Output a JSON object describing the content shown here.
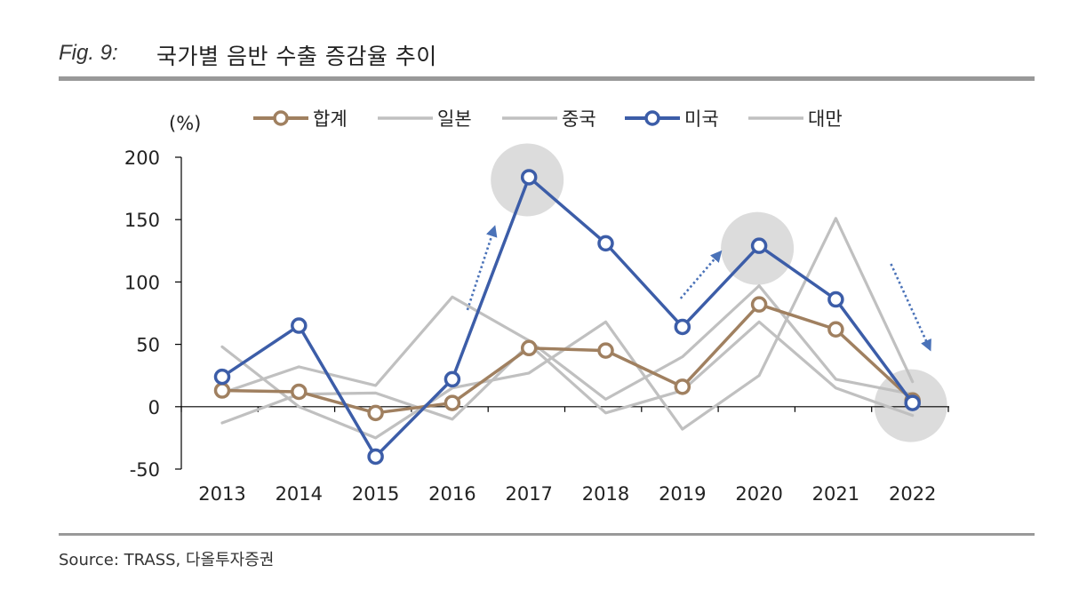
{
  "figure": {
    "label": "Fig. 9:",
    "title": "국가별 음반 수출 증감율 추이",
    "source": "Source: TRASS, 다올투자증권"
  },
  "chart_data": {
    "type": "line",
    "ylabel": "(%)",
    "ylim": [
      -50,
      200
    ],
    "yticks": [
      -50,
      0,
      50,
      100,
      150,
      200
    ],
    "categories": [
      "2013",
      "2014",
      "2015",
      "2016",
      "2017",
      "2018",
      "2019",
      "2020",
      "2021",
      "2022"
    ],
    "legend_position": "top",
    "series": [
      {
        "name": "합계",
        "color": "#a08060",
        "marker": true,
        "values": [
          13,
          12,
          -5,
          3,
          47,
          45,
          16,
          82,
          62,
          5
        ]
      },
      {
        "name": "일본",
        "color": "#c0c0c0",
        "marker": false,
        "values": [
          11,
          32,
          17,
          88,
          53,
          6,
          40,
          97,
          22,
          10
        ]
      },
      {
        "name": "중국",
        "color": "#c0c0c0",
        "marker": false,
        "values": [
          48,
          0,
          -25,
          15,
          27,
          68,
          -18,
          25,
          151,
          20
        ]
      },
      {
        "name": "미국",
        "color": "#3c5da8",
        "marker": true,
        "values": [
          24,
          65,
          -40,
          22,
          184,
          131,
          64,
          129,
          86,
          3
        ]
      },
      {
        "name": "대만",
        "color": "#c0c0c0",
        "marker": false,
        "values": [
          -13,
          10,
          11,
          -10,
          50,
          -5,
          13,
          68,
          15,
          -7
        ]
      }
    ],
    "annotations": {
      "highlight_circles": [
        "2017",
        "2020",
        "2022"
      ],
      "trend_arrows": [
        {
          "from": "2016",
          "to": "2017",
          "direction": "up"
        },
        {
          "from": "2019",
          "to": "2020",
          "direction": "up"
        },
        {
          "from": "2021",
          "to": "2022",
          "direction": "down"
        }
      ]
    }
  }
}
